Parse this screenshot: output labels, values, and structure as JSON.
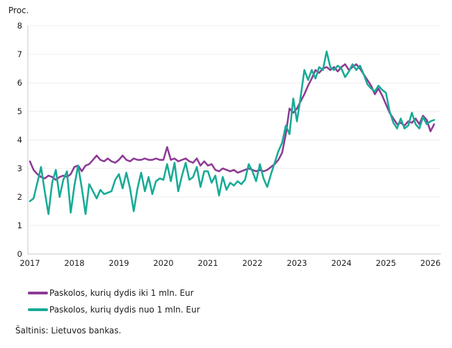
{
  "chart": {
    "unit_label": "Proc.",
    "source": "Šaltinis: Lietuvos bankas."
  },
  "chart_data": {
    "type": "line",
    "title": "",
    "ylabel": "Proc.",
    "xlabel": "",
    "ylim": [
      0,
      8
    ],
    "y_ticks": [
      0,
      1,
      2,
      3,
      4,
      5,
      6,
      7,
      8
    ],
    "x_tick_labels": [
      "2017",
      "2018",
      "2019",
      "2020",
      "2021",
      "2022",
      "2023",
      "2024",
      "2025",
      "2026"
    ],
    "frequency": "monthly",
    "x_start": "2017-01",
    "x_end": "2026-02",
    "grid": "horizontal-only",
    "legend_position": "bottom-left",
    "axis_color": "#c8c8c8",
    "grid_color": "#ececec",
    "series": [
      {
        "name": "Paskolos, kurių dydis iki 1 mln. Eur",
        "color": "#8d3b96",
        "values": [
          3.25,
          2.95,
          2.8,
          2.7,
          2.65,
          2.75,
          2.7,
          2.6,
          2.7,
          2.75,
          2.7,
          2.8,
          3.05,
          3.1,
          2.9,
          3.1,
          3.15,
          3.3,
          3.45,
          3.3,
          3.25,
          3.35,
          3.25,
          3.2,
          3.3,
          3.45,
          3.3,
          3.25,
          3.35,
          3.3,
          3.3,
          3.35,
          3.3,
          3.3,
          3.35,
          3.3,
          3.3,
          3.75,
          3.3,
          3.35,
          3.25,
          3.3,
          3.35,
          3.25,
          3.2,
          3.35,
          3.1,
          3.25,
          3.1,
          3.15,
          2.95,
          2.9,
          3.0,
          2.95,
          2.9,
          2.95,
          2.85,
          2.9,
          2.95,
          3.0,
          2.95,
          2.9,
          2.95,
          2.9,
          2.95,
          3.05,
          3.15,
          3.3,
          3.55,
          4.2,
          5.1,
          4.95,
          5.1,
          5.35,
          5.6,
          5.9,
          6.15,
          6.45,
          6.35,
          6.5,
          6.55,
          6.45,
          6.55,
          6.4,
          6.55,
          6.65,
          6.45,
          6.55,
          6.65,
          6.5,
          6.3,
          6.1,
          5.9,
          5.6,
          5.8,
          5.55,
          5.25,
          4.95,
          4.75,
          4.55,
          4.6,
          4.5,
          4.65,
          4.6,
          4.75,
          4.55,
          4.85,
          4.7,
          4.3,
          4.55
        ]
      },
      {
        "name": "Paskolos, kurių dydis nuo 1 mln. Eur",
        "color": "#17ab96",
        "values": [
          1.85,
          1.95,
          2.5,
          3.05,
          2.2,
          1.4,
          2.5,
          2.95,
          2.0,
          2.6,
          2.9,
          1.45,
          2.4,
          3.1,
          2.3,
          1.4,
          2.45,
          2.2,
          1.95,
          2.25,
          2.1,
          2.15,
          2.2,
          2.6,
          2.8,
          2.3,
          2.85,
          2.3,
          1.5,
          2.3,
          2.85,
          2.2,
          2.7,
          2.1,
          2.55,
          2.65,
          2.6,
          3.15,
          2.55,
          3.2,
          2.2,
          2.75,
          3.2,
          2.6,
          2.7,
          3.05,
          2.35,
          2.9,
          2.9,
          2.5,
          2.75,
          2.05,
          2.7,
          2.25,
          2.5,
          2.4,
          2.55,
          2.45,
          2.6,
          3.15,
          2.9,
          2.55,
          3.15,
          2.65,
          2.35,
          2.8,
          3.2,
          3.6,
          3.9,
          4.5,
          4.2,
          5.45,
          4.65,
          5.5,
          6.45,
          6.1,
          6.45,
          6.15,
          6.55,
          6.45,
          7.1,
          6.55,
          6.45,
          6.6,
          6.5,
          6.2,
          6.4,
          6.65,
          6.45,
          6.6,
          6.3,
          5.95,
          5.8,
          5.7,
          5.9,
          5.75,
          5.65,
          5.0,
          4.6,
          4.4,
          4.75,
          4.4,
          4.5,
          4.95,
          4.55,
          4.4,
          4.8,
          4.55,
          4.65,
          4.7
        ]
      }
    ],
    "source": "Šaltinis: Lietuvos bankas."
  }
}
